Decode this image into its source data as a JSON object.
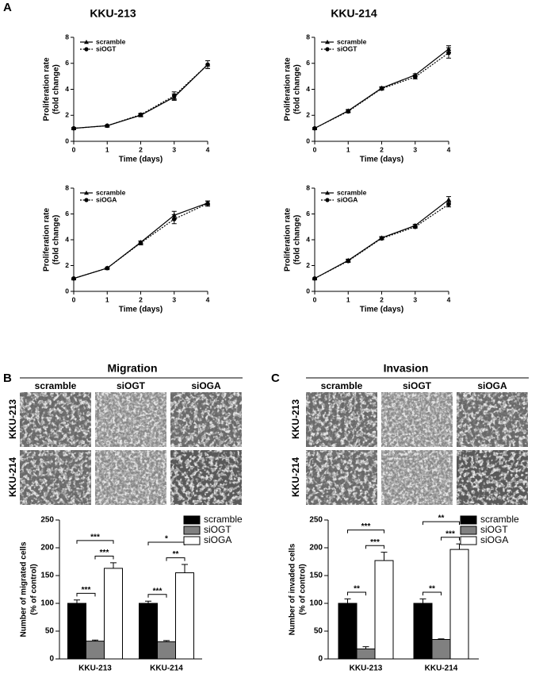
{
  "panel_labels": [
    "A",
    "B",
    "C"
  ],
  "migration": {
    "title": "Migration",
    "columns": [
      "scramble",
      "siOGT",
      "siOGA"
    ],
    "rows": [
      "KKU-213",
      "KKU-214"
    ]
  },
  "invasion": {
    "title": "Invasion",
    "columns": [
      "scramble",
      "siOGT",
      "siOGA"
    ],
    "rows": [
      "KKU-213",
      "KKU-214"
    ]
  },
  "chart_data": [
    {
      "type": "line",
      "title": "KKU-213",
      "x": [
        0,
        1,
        2,
        3,
        4
      ],
      "xlabel": "Time (days)",
      "ylabel": [
        "Proliferation rate",
        "(fold change)"
      ],
      "xlim": [
        0,
        4
      ],
      "xticks": [
        0,
        1,
        2,
        3,
        4
      ],
      "ylim": [
        0,
        8
      ],
      "yticks": [
        0,
        2,
        4,
        6,
        8
      ],
      "legend": "upper left",
      "series": [
        {
          "name": "scramble",
          "color": "#000000",
          "marker": "triangle",
          "linestyle": "solid",
          "values": [
            1,
            1.2,
            2,
            3.4,
            5.9
          ],
          "errors": [
            0.05,
            0.05,
            0.1,
            0.25,
            0.3
          ]
        },
        {
          "name": "siOGT",
          "color": "#000000",
          "marker": "circle",
          "linestyle": "dotted",
          "values": [
            1,
            1.2,
            2.05,
            3.5,
            5.9
          ],
          "errors": [
            0.05,
            0.05,
            0.1,
            0.3,
            0.3
          ]
        }
      ]
    },
    {
      "type": "line",
      "title": "KKU-214",
      "x": [
        0,
        1,
        2,
        3,
        4
      ],
      "xlabel": "Time (days)",
      "ylabel": [
        "Proliferation rate",
        "(fold change)"
      ],
      "xlim": [
        0,
        4
      ],
      "xticks": [
        0,
        1,
        2,
        3,
        4
      ],
      "ylim": [
        0,
        8
      ],
      "yticks": [
        0,
        2,
        4,
        6,
        8
      ],
      "legend": "upper left",
      "series": [
        {
          "name": "scramble",
          "color": "#000000",
          "marker": "triangle",
          "linestyle": "solid",
          "values": [
            1,
            2.35,
            4.1,
            5.1,
            7.1
          ],
          "errors": [
            0.05,
            0.1,
            0.1,
            0.1,
            0.25
          ]
        },
        {
          "name": "siOGT",
          "color": "#000000",
          "marker": "circle",
          "linestyle": "dotted",
          "values": [
            1,
            2.3,
            4.05,
            4.95,
            6.8
          ],
          "errors": [
            0.05,
            0.1,
            0.1,
            0.15,
            0.4
          ]
        }
      ]
    },
    {
      "type": "line",
      "x": [
        0,
        1,
        2,
        3,
        4
      ],
      "xlabel": "Time (days)",
      "ylabel": [
        "Proliferation rate",
        "(fold change)"
      ],
      "xlim": [
        0,
        4
      ],
      "xticks": [
        0,
        1,
        2,
        3,
        4
      ],
      "ylim": [
        0,
        8
      ],
      "yticks": [
        0,
        2,
        4,
        6,
        8
      ],
      "legend": "upper left",
      "series": [
        {
          "name": "scramble",
          "color": "#000000",
          "marker": "triangle",
          "linestyle": "solid",
          "values": [
            1,
            1.8,
            3.8,
            5.9,
            6.85
          ],
          "errors": [
            0.05,
            0.05,
            0.1,
            0.3,
            0.15
          ]
        },
        {
          "name": "siOGA",
          "color": "#000000",
          "marker": "circle",
          "linestyle": "dotted",
          "values": [
            1,
            1.8,
            3.75,
            5.6,
            6.8
          ],
          "errors": [
            0.05,
            0.05,
            0.15,
            0.35,
            0.2
          ]
        }
      ]
    },
    {
      "type": "line",
      "x": [
        0,
        1,
        2,
        3,
        4
      ],
      "xlabel": "Time (days)",
      "ylabel": [
        "Proliferation rate",
        "(fold change)"
      ],
      "xlim": [
        0,
        4
      ],
      "xticks": [
        0,
        1,
        2,
        3,
        4
      ],
      "ylim": [
        0,
        8
      ],
      "yticks": [
        0,
        2,
        4,
        6,
        8
      ],
      "legend": "upper left",
      "series": [
        {
          "name": "scramble",
          "color": "#000000",
          "marker": "triangle",
          "linestyle": "solid",
          "values": [
            1,
            2.4,
            4.15,
            5.1,
            7.1
          ],
          "errors": [
            0.05,
            0.1,
            0.1,
            0.1,
            0.25
          ]
        },
        {
          "name": "siOGA",
          "color": "#000000",
          "marker": "circle",
          "linestyle": "dotted",
          "values": [
            1,
            2.35,
            4.1,
            5,
            6.75
          ],
          "errors": [
            0.05,
            0.1,
            0.1,
            0.1,
            0.2
          ]
        }
      ]
    },
    {
      "type": "bar",
      "categories": [
        "KKU-213",
        "KKU-214"
      ],
      "ylabel": [
        "Number of migrated cells",
        "(% of control)"
      ],
      "ylim": [
        0,
        250
      ],
      "yticks": [
        0,
        50,
        100,
        150,
        200,
        250
      ],
      "legend": "right",
      "series": [
        {
          "name": "scramble",
          "color": "#000000",
          "values": [
            100,
            100
          ],
          "errors": [
            6,
            4
          ]
        },
        {
          "name": "siOGT",
          "color": "#808080",
          "values": [
            32,
            31
          ],
          "errors": [
            2,
            2
          ]
        },
        {
          "name": "siOGA",
          "color": "#ffffff",
          "values": [
            163,
            155
          ],
          "errors": [
            10,
            15
          ]
        }
      ],
      "significance": [
        [
          "***",
          "***",
          "***"
        ],
        [
          "***",
          "**",
          "*"
        ]
      ]
    },
    {
      "type": "bar",
      "categories": [
        "KKU-213",
        "KKU-214"
      ],
      "ylabel": [
        "Number of invaded cells",
        "(% of control)"
      ],
      "ylim": [
        0,
        250
      ],
      "yticks": [
        0,
        50,
        100,
        150,
        200,
        250
      ],
      "legend": "right",
      "series": [
        {
          "name": "scramble",
          "color": "#000000",
          "values": [
            100,
            100
          ],
          "errors": [
            8,
            8
          ]
        },
        {
          "name": "siOGT",
          "color": "#808080",
          "values": [
            18,
            35
          ],
          "errors": [
            4,
            1
          ]
        },
        {
          "name": "siOGA",
          "color": "#ffffff",
          "values": [
            177,
            197
          ],
          "errors": [
            15,
            10
          ]
        }
      ],
      "significance": [
        [
          "**",
          "***",
          "***"
        ],
        [
          "**",
          "***",
          "**"
        ]
      ]
    }
  ]
}
